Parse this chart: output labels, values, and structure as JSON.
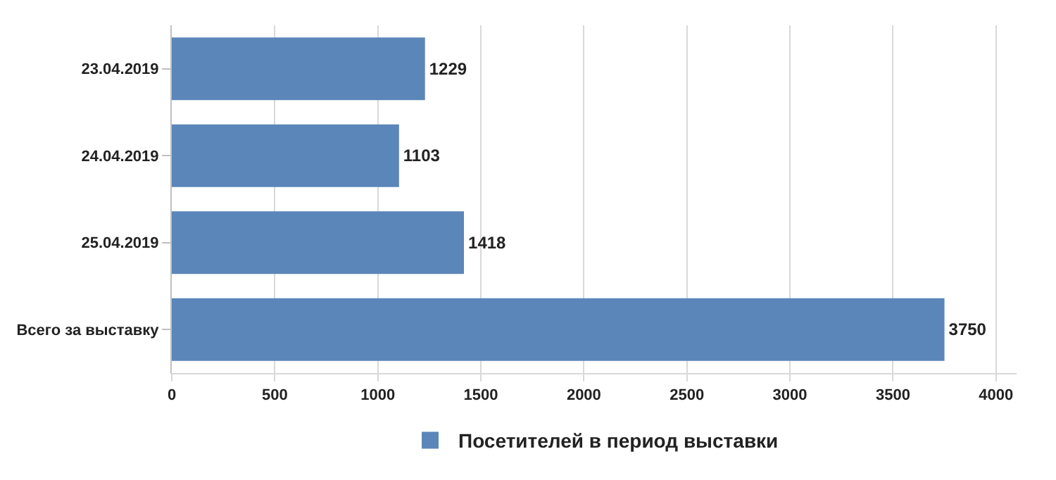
{
  "chart_data": {
    "type": "bar",
    "orientation": "horizontal",
    "categories": [
      "23.04.2019",
      "24.04.2019",
      "25.04.2019",
      "Всего за выставку"
    ],
    "series": [
      {
        "name": "Посетителей в период выставки",
        "color": "#5b86b9",
        "values": [
          1229,
          1103,
          1418,
          3750
        ]
      }
    ],
    "xlim": [
      0,
      4100
    ],
    "xticks": [
      0,
      500,
      1000,
      1500,
      2000,
      2500,
      3000,
      3500,
      4000
    ],
    "grid": "x",
    "legend": "bottom",
    "data_labels": true
  }
}
